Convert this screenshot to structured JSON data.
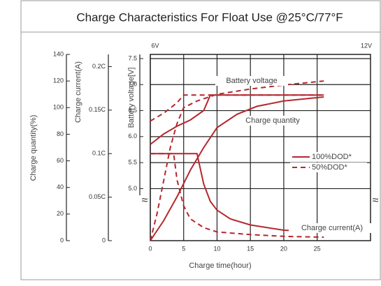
{
  "chart_data": {
    "type": "line",
    "title": "Charge Characteristics For Float Use @25°C/77°F",
    "xlabel": "Charge time(hour)",
    "xlim": [
      0,
      33
    ],
    "xticks": [
      0,
      5,
      10,
      15,
      20,
      25
    ],
    "y_quantity": {
      "label": "Charge quantity(%)",
      "lim": [
        0,
        140
      ],
      "ticks": [
        0,
        20,
        40,
        60,
        80,
        100,
        120,
        140
      ]
    },
    "y_current": {
      "label": "Charge current(A)",
      "lim": [
        0,
        0.214
      ],
      "ticks": [
        0,
        {
          "value": 0.05,
          "label": "0.05C"
        },
        {
          "value": 0.1,
          "label": "0.1C"
        },
        {
          "value": 0.15,
          "label": "0.15C"
        },
        {
          "value": 0.2,
          "label": "0.2C"
        }
      ]
    },
    "y_voltage": {
      "label": "Battery voltage[V]",
      "lim": [
        4.0,
        7.58
      ],
      "ticks": [
        {
          "value": 5.0,
          "label": "5.0"
        },
        5.5,
        {
          "value": 6.0,
          "label": "6.0"
        },
        6.5,
        {
          "value": 7.0,
          "label": "7.0"
        },
        7.5
      ]
    },
    "voltage_units": [
      "6V",
      "12V"
    ],
    "grid": true,
    "color": "#b5272d",
    "legend": [
      {
        "name": "100%DOD*",
        "dash": false
      },
      {
        "name": "50%DOD*",
        "dash": true
      }
    ],
    "annotations": [
      "Battery voltage",
      "Charge quantity",
      "Charge current(A)"
    ],
    "series": [
      {
        "axis": "y_voltage",
        "legend_entry": 0,
        "x": [
          0,
          2,
          4,
          6,
          8,
          9,
          26
        ],
        "values": [
          5.85,
          6.05,
          6.2,
          6.32,
          6.5,
          6.8,
          6.8
        ]
      },
      {
        "axis": "y_voltage",
        "legend_entry": 1,
        "x": [
          0,
          2,
          4,
          5,
          26
        ],
        "values": [
          6.3,
          6.45,
          6.65,
          6.8,
          6.8
        ]
      },
      {
        "axis": "y_quantity",
        "legend_entry": 0,
        "x": [
          0,
          2,
          4,
          6,
          8,
          10,
          13,
          16,
          20,
          26
        ],
        "values": [
          0,
          15,
          33,
          53,
          70,
          85,
          95,
          101,
          105,
          108
        ]
      },
      {
        "axis": "y_quantity",
        "legend_entry": 1,
        "x": [
          0,
          1,
          2,
          3,
          4,
          5,
          7,
          10,
          15,
          20,
          26
        ],
        "values": [
          0,
          20,
          45,
          70,
          88,
          100,
          105,
          110,
          114,
          117,
          120
        ]
      },
      {
        "axis": "y_current",
        "legend_entry": 0,
        "x": [
          0,
          7,
          8,
          9,
          10,
          12,
          15,
          20,
          26
        ],
        "values": [
          0.1,
          0.1,
          0.065,
          0.045,
          0.035,
          0.025,
          0.018,
          0.012,
          0.01
        ]
      },
      {
        "axis": "y_current",
        "legend_entry": 1,
        "x": [
          0,
          3.5,
          4,
          5,
          6,
          8,
          10,
          15,
          20,
          26
        ],
        "values": [
          0.1,
          0.1,
          0.07,
          0.04,
          0.025,
          0.015,
          0.01,
          0.007,
          0.005,
          0.004
        ]
      }
    ]
  }
}
